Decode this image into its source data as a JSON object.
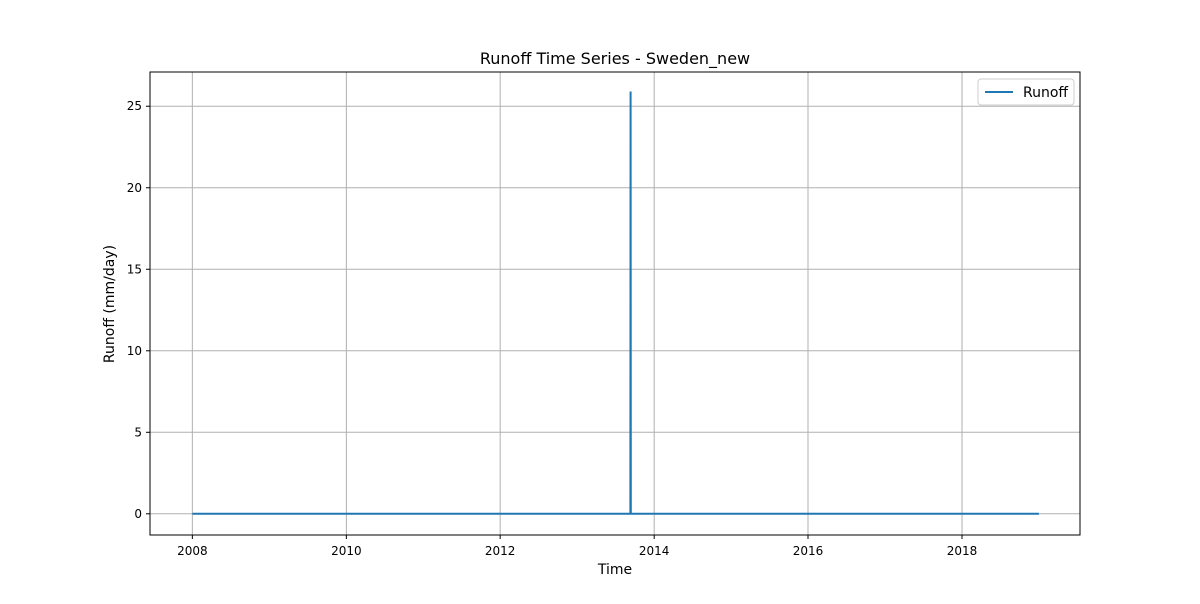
{
  "chart_data": {
    "type": "line",
    "title": "Runoff Time Series - Sweden_new",
    "xlabel": "Time",
    "ylabel": "Runoff (mm/day)",
    "xlim": [
      "2007-06-14",
      "2019-07-15"
    ],
    "ylim": [
      -1.3,
      27.1
    ],
    "grid": true,
    "legend_position": "top-right",
    "x_ticks": [
      {
        "value": "2008-01-01",
        "label": "2008"
      },
      {
        "value": "2010-01-01",
        "label": "2010"
      },
      {
        "value": "2012-01-01",
        "label": "2012"
      },
      {
        "value": "2014-01-01",
        "label": "2014"
      },
      {
        "value": "2016-01-01",
        "label": "2016"
      },
      {
        "value": "2018-01-01",
        "label": "2018"
      }
    ],
    "y_ticks": [
      {
        "value": 0,
        "label": "0"
      },
      {
        "value": 5,
        "label": "5"
      },
      {
        "value": 10,
        "label": "10"
      },
      {
        "value": 15,
        "label": "15"
      },
      {
        "value": 20,
        "label": "20"
      },
      {
        "value": 25,
        "label": "25"
      }
    ],
    "series": [
      {
        "name": "Runoff",
        "color": "#1f77b4",
        "points": [
          {
            "x": "2008-01-01",
            "y": 0
          },
          {
            "x": "2013-09-10",
            "y": 0
          },
          {
            "x": "2013-09-11",
            "y": 25.9
          },
          {
            "x": "2013-09-12",
            "y": 0
          },
          {
            "x": "2019-01-01",
            "y": 0
          }
        ]
      }
    ]
  }
}
